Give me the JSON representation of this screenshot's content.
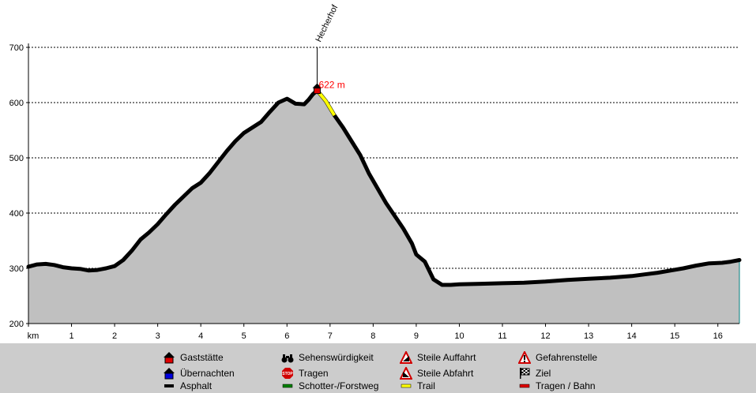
{
  "chart_data": {
    "type": "area",
    "title": "",
    "xlabel": "km",
    "ylabel": "",
    "xlim": [
      0,
      16.5
    ],
    "ylim": [
      200,
      700
    ],
    "x_ticks": [
      "km",
      "1",
      "2",
      "3",
      "4",
      "5",
      "6",
      "7",
      "8",
      "9",
      "10",
      "11",
      "12",
      "13",
      "14",
      "15",
      "16"
    ],
    "y_ticks": [
      "200",
      "300",
      "400",
      "500",
      "600",
      "700"
    ],
    "grid": "horizontal-dashed",
    "series": [
      {
        "name": "elevation",
        "x": [
          0,
          0.2,
          0.4,
          0.6,
          0.8,
          1.0,
          1.2,
          1.4,
          1.6,
          1.8,
          2.0,
          2.2,
          2.4,
          2.6,
          2.8,
          3.0,
          3.2,
          3.4,
          3.6,
          3.8,
          4.0,
          4.2,
          4.4,
          4.6,
          4.8,
          5.0,
          5.2,
          5.4,
          5.6,
          5.8,
          6.0,
          6.2,
          6.4,
          6.5,
          6.6,
          6.7,
          6.9,
          7.1,
          7.3,
          7.5,
          7.7,
          7.9,
          8.1,
          8.3,
          8.5,
          8.7,
          8.9,
          9.0,
          9.2,
          9.4,
          9.6,
          9.8,
          10.0,
          10.5,
          11.0,
          11.5,
          12.0,
          12.5,
          13.0,
          13.5,
          14.0,
          14.3,
          14.6,
          14.9,
          15.2,
          15.5,
          15.8,
          16.1,
          16.3,
          16.5
        ],
        "y": [
          303,
          307,
          308,
          306,
          302,
          300,
          299,
          296,
          297,
          300,
          304,
          315,
          332,
          352,
          365,
          380,
          398,
          415,
          430,
          445,
          455,
          472,
          492,
          512,
          530,
          545,
          555,
          565,
          583,
          600,
          607,
          598,
          597,
          605,
          615,
          622,
          603,
          577,
          555,
          530,
          505,
          472,
          445,
          418,
          395,
          372,
          345,
          325,
          312,
          280,
          270,
          270,
          271,
          272,
          273,
          274,
          276,
          279,
          281,
          283,
          286,
          289,
          292,
          296,
          300,
          305,
          309,
          310,
          312,
          315
        ]
      }
    ],
    "trail_segment": {
      "name": "Trail",
      "x": [
        6.7,
        6.9,
        7.1
      ],
      "y": [
        622,
        603,
        577
      ]
    },
    "marker": {
      "label": "Hecherhof",
      "elevation_label": "622 m",
      "x": 6.7,
      "y": 622,
      "type": "Gaststätte"
    }
  },
  "colors": {
    "fill": "#c0c0c0",
    "line": "#000000",
    "trail": "#ffff00",
    "grid": "#000000",
    "marker_text": "#ff0000",
    "legend_bg": "#cccccc"
  },
  "legend": {
    "items": [
      {
        "label": "Gaststätte",
        "icon": "house-red-icon"
      },
      {
        "label": "Sehenswürdigkeit",
        "icon": "binoculars-icon"
      },
      {
        "label": "Steile Auffahrt",
        "icon": "steep-up-icon"
      },
      {
        "label": "Gefahrenstelle",
        "icon": "danger-icon"
      },
      {
        "label": "Übernachten",
        "icon": "house-blue-icon"
      },
      {
        "label": "Tragen",
        "icon": "stop-icon"
      },
      {
        "label": "Steile Abfahrt",
        "icon": "steep-down-icon"
      },
      {
        "label": "Ziel",
        "icon": "finish-flag-icon"
      },
      {
        "label": "Asphalt",
        "icon": "black-swatch-icon"
      },
      {
        "label": "Schotter-/Forstweg",
        "icon": "green-swatch-icon"
      },
      {
        "label": "Trail",
        "icon": "yellow-swatch-icon"
      },
      {
        "label": "Tragen / Bahn",
        "icon": "red-swatch-icon"
      }
    ]
  }
}
